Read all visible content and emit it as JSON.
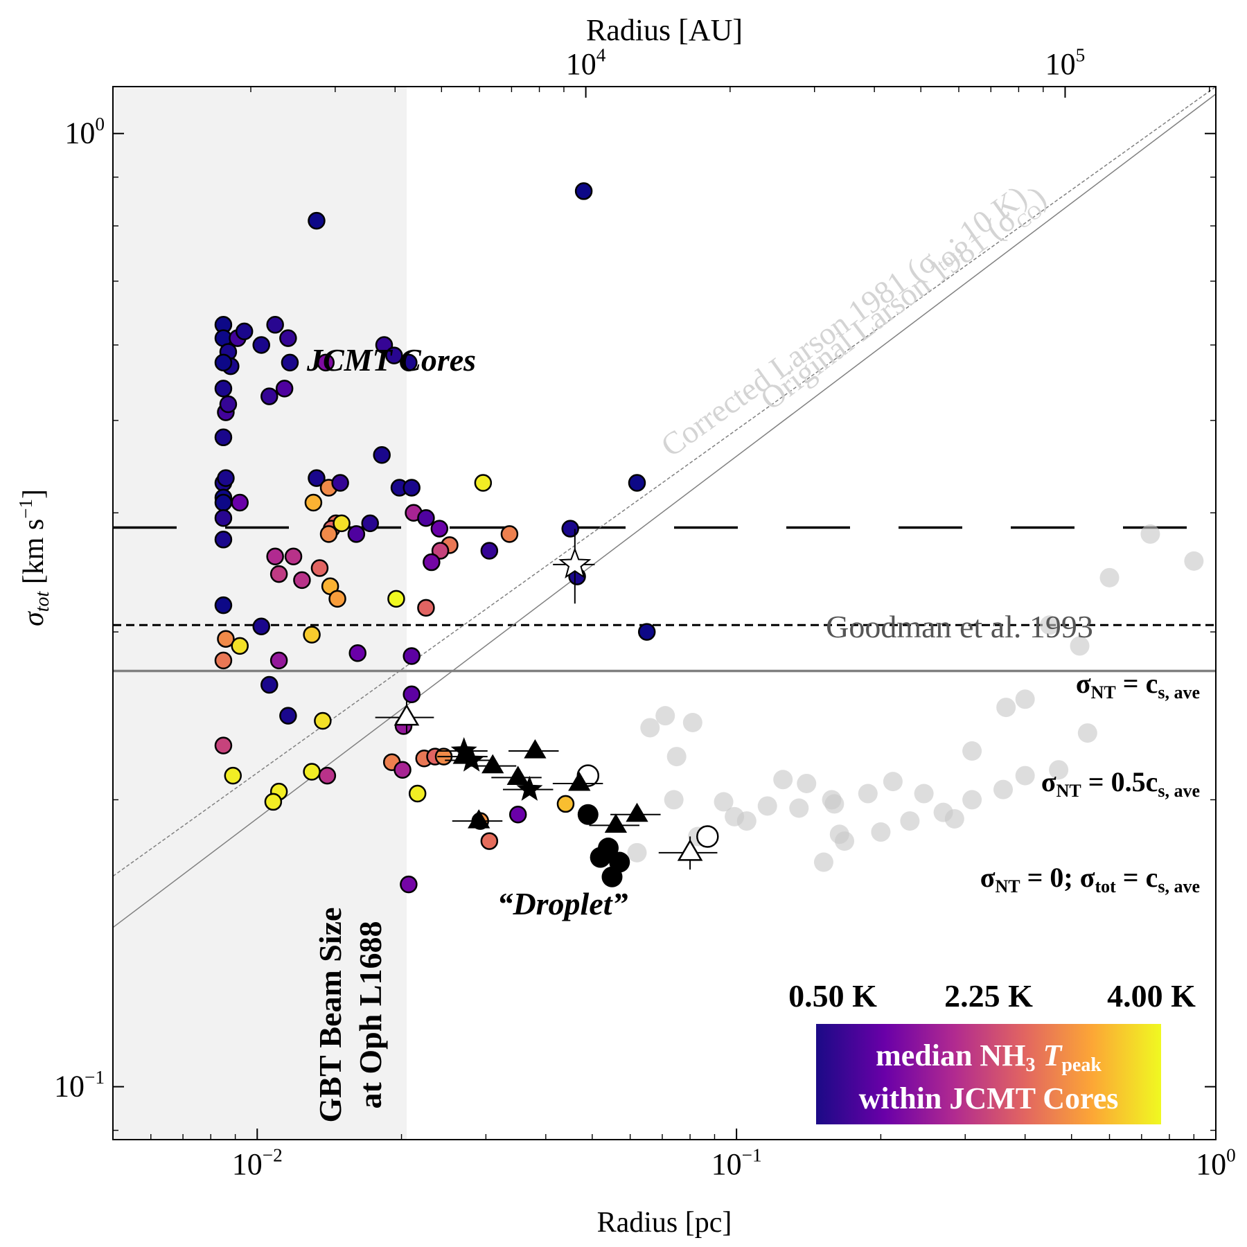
{
  "chart_data": {
    "type": "scatter",
    "title": "",
    "xlabel": "Radius [pc]",
    "ylabel_main": "σ",
    "ylabel_sub": "tot",
    "ylabel_units": " [km s",
    "ylabel_exp": "−1",
    "ylabel_close": "]",
    "top_xlabel": "Radius [AU]",
    "xscale": "log",
    "yscale": "log",
    "xlim": [
      0.005,
      1.0
    ],
    "ylim": [
      0.088,
      1.12
    ],
    "grid": false,
    "x_ticks": [
      {
        "value": 0.01,
        "base": "10",
        "exp": "−2"
      },
      {
        "value": 0.1,
        "base": "10",
        "exp": "−1"
      },
      {
        "value": 1.0,
        "base": "10",
        "exp": "0"
      }
    ],
    "y_ticks": [
      {
        "value": 0.1,
        "base": "10",
        "exp": "−1"
      },
      {
        "value": 1.0,
        "base": "10",
        "exp": "0"
      }
    ],
    "top_ticks": [
      {
        "value_au": 10000,
        "base": "10",
        "exp": "4"
      },
      {
        "value_au": 100000,
        "base": "10",
        "exp": "5"
      }
    ],
    "beam_region": {
      "x_max_pc": 0.0205,
      "label_line1": "GBT Beam Size",
      "label_line2": "at Oph L1688"
    },
    "colorbar": {
      "colors": [
        "#1b0a86",
        "#6a00a8",
        "#b12a90",
        "#e16462",
        "#fca636",
        "#f0f921"
      ],
      "tick_labels": [
        "0.50 K",
        "2.25 K",
        "4.00 K"
      ],
      "title_line1_a": "median NH",
      "title_line1_sub": "3",
      "title_line1_b": " T",
      "title_line1_sub2": "peak",
      "title_line2": "within JCMT Cores"
    },
    "reference_lines": {
      "cs_ave": 0.273,
      "nt_eq_cs": 0.386,
      "nt_half_cs": 0.305,
      "original_larson": {
        "a": 1.1,
        "b": 0.38
      },
      "corrected_larson": {
        "a": 1.12,
        "b": 0.36
      }
    },
    "labels": {
      "jcmt": "JCMT Cores",
      "droplet": "“Droplet”",
      "goodman": "Goodman et al. 1993",
      "original_larson_a": "Original Larson 1981 (σ",
      "original_larson_sub": "CO",
      "original_larson_b": ")",
      "corrected_larson_a": "Corrected Larson 1981 (σ",
      "corrected_larson_sub": "tot",
      "corrected_larson_b": "; 10 K)",
      "nt_eq_a": "σ",
      "nt_eq_sub1": "NT",
      "nt_eq_b": " = c",
      "nt_eq_sub2": "s, ave",
      "nt_half_a": "σ",
      "nt_half_sub1": "NT",
      "nt_half_b": " = 0.5c",
      "nt_half_sub2": "s, ave",
      "nt_zero_a": "σ",
      "nt_zero_sub1": "NT",
      "nt_zero_b": " = 0; σ",
      "nt_zero_sub2": "tot",
      "nt_zero_c": " = c",
      "nt_zero_sub3": "s, ave"
    },
    "series": [
      {
        "kind": "jcmt_cores",
        "points": [
          [
            0.0085,
            0.63,
            0.5
          ],
          [
            0.0085,
            0.61,
            0.5
          ],
          [
            0.0087,
            0.59,
            0.6
          ],
          [
            0.0088,
            0.57,
            0.6
          ],
          [
            0.0085,
            0.575,
            0.5
          ],
          [
            0.0085,
            0.54,
            0.6
          ],
          [
            0.0086,
            0.51,
            0.9
          ],
          [
            0.0087,
            0.52,
            0.8
          ],
          [
            0.0085,
            0.48,
            0.6
          ],
          [
            0.0091,
            0.61,
            0.9
          ],
          [
            0.0094,
            0.62,
            0.6
          ],
          [
            0.0102,
            0.6,
            0.6
          ],
          [
            0.0109,
            0.63,
            0.7
          ],
          [
            0.0116,
            0.61,
            0.8
          ],
          [
            0.0117,
            0.575,
            0.6
          ],
          [
            0.0106,
            0.53,
            0.8
          ],
          [
            0.0114,
            0.54,
            1.0
          ],
          [
            0.0133,
            0.81,
            0.5
          ],
          [
            0.0139,
            0.575,
            1.4
          ],
          [
            0.0184,
            0.6,
            0.8
          ],
          [
            0.0193,
            0.585,
            0.7
          ],
          [
            0.0207,
            0.575,
            0.6
          ],
          [
            0.0182,
            0.46,
            0.6
          ],
          [
            0.0085,
            0.43,
            0.6
          ],
          [
            0.0086,
            0.435,
            0.6
          ],
          [
            0.0085,
            0.415,
            0.5
          ],
          [
            0.0085,
            0.41,
            0.5
          ],
          [
            0.0085,
            0.395,
            0.7
          ],
          [
            0.0085,
            0.375,
            0.6
          ],
          [
            0.0092,
            0.41,
            1.2
          ],
          [
            0.0133,
            0.435,
            0.6
          ],
          [
            0.0141,
            0.425,
            3.0
          ],
          [
            0.0131,
            0.41,
            3.4
          ],
          [
            0.0149,
            0.43,
            0.8
          ],
          [
            0.0146,
            0.39,
            2.7
          ],
          [
            0.0143,
            0.385,
            2.6
          ],
          [
            0.0141,
            0.38,
            3.0
          ],
          [
            0.015,
            0.39,
            3.8
          ],
          [
            0.0161,
            0.38,
            1.0
          ],
          [
            0.0172,
            0.39,
            0.7
          ],
          [
            0.0198,
            0.425,
            0.6
          ],
          [
            0.021,
            0.425,
            0.6
          ],
          [
            0.0212,
            0.4,
            1.8
          ],
          [
            0.0225,
            0.395,
            1.0
          ],
          [
            0.024,
            0.385,
            1.2
          ],
          [
            0.0252,
            0.37,
            2.8
          ],
          [
            0.0296,
            0.43,
            3.9
          ],
          [
            0.0305,
            0.365,
            0.8
          ],
          [
            0.0336,
            0.38,
            2.9
          ],
          [
            0.0241,
            0.365,
            2.2
          ],
          [
            0.0231,
            0.355,
            1.3
          ],
          [
            0.0109,
            0.36,
            1.9
          ],
          [
            0.0111,
            0.345,
            2.1
          ],
          [
            0.0119,
            0.36,
            2.0
          ],
          [
            0.0124,
            0.34,
            2.0
          ],
          [
            0.0135,
            0.35,
            2.6
          ],
          [
            0.0142,
            0.335,
            3.4
          ],
          [
            0.0147,
            0.325,
            3.2
          ],
          [
            0.0195,
            0.325,
            4.0
          ],
          [
            0.0225,
            0.318,
            2.6
          ],
          [
            0.0085,
            0.32,
            0.5
          ],
          [
            0.0102,
            0.304,
            0.6
          ],
          [
            0.0086,
            0.295,
            3.0
          ],
          [
            0.0092,
            0.29,
            3.8
          ],
          [
            0.013,
            0.298,
            3.6
          ],
          [
            0.0085,
            0.28,
            2.8
          ],
          [
            0.0111,
            0.28,
            1.6
          ],
          [
            0.0162,
            0.285,
            1.2
          ],
          [
            0.0106,
            0.264,
            0.6
          ],
          [
            0.021,
            0.258,
            1.1
          ],
          [
            0.0116,
            0.245,
            0.6
          ],
          [
            0.0137,
            0.242,
            3.8
          ],
          [
            0.0202,
            0.239,
            1.6
          ],
          [
            0.0085,
            0.228,
            2.2
          ],
          [
            0.0089,
            0.212,
            3.9
          ],
          [
            0.013,
            0.214,
            3.9
          ],
          [
            0.014,
            0.212,
            2.0
          ],
          [
            0.0111,
            0.204,
            3.9
          ],
          [
            0.0108,
            0.199,
            3.9
          ],
          [
            0.0191,
            0.219,
            2.9
          ],
          [
            0.0223,
            0.221,
            2.8
          ],
          [
            0.0235,
            0.222,
            2.6
          ],
          [
            0.0245,
            0.222,
            3.0
          ],
          [
            0.0201,
            0.215,
            1.8
          ],
          [
            0.0216,
            0.203,
            3.9
          ],
          [
            0.0292,
            0.19,
            3.1
          ],
          [
            0.0305,
            0.181,
            2.7
          ],
          [
            0.035,
            0.193,
            1.2
          ],
          [
            0.044,
            0.198,
            3.5
          ],
          [
            0.048,
            0.87,
            0.5
          ],
          [
            0.045,
            0.385,
            0.6
          ],
          [
            0.062,
            0.43,
            0.5
          ],
          [
            0.0465,
            0.343,
            0.6
          ],
          [
            0.065,
            0.3,
            0.5
          ],
          [
            0.021,
            0.283,
            1.1
          ],
          [
            0.0207,
            0.163,
            1.3
          ]
        ]
      },
      {
        "kind": "goodman_1993",
        "points": [
          [
            0.066,
            0.238
          ],
          [
            0.071,
            0.245
          ],
          [
            0.081,
            0.241
          ],
          [
            0.075,
            0.222
          ],
          [
            0.094,
            0.199
          ],
          [
            0.099,
            0.192
          ],
          [
            0.116,
            0.197
          ],
          [
            0.125,
            0.21
          ],
          [
            0.14,
            0.208
          ],
          [
            0.164,
            0.184
          ],
          [
            0.152,
            0.172
          ],
          [
            0.168,
            0.181
          ],
          [
            0.158,
            0.2
          ],
          [
            0.188,
            0.203
          ],
          [
            0.212,
            0.209
          ],
          [
            0.246,
            0.203
          ],
          [
            0.285,
            0.191
          ],
          [
            0.31,
            0.225
          ],
          [
            0.365,
            0.25
          ],
          [
            0.4,
            0.255
          ],
          [
            0.45,
            0.305
          ],
          [
            0.52,
            0.29
          ],
          [
            0.6,
            0.342
          ],
          [
            0.9,
            0.356
          ],
          [
            0.73,
            0.38
          ],
          [
            0.54,
            0.235
          ],
          [
            0.47,
            0.215
          ],
          [
            0.4,
            0.212
          ],
          [
            0.36,
            0.205
          ],
          [
            0.31,
            0.2
          ],
          [
            0.27,
            0.194
          ],
          [
            0.23,
            0.19
          ],
          [
            0.2,
            0.185
          ],
          [
            0.16,
            0.198
          ],
          [
            0.135,
            0.196
          ],
          [
            0.105,
            0.19
          ],
          [
            0.083,
            0.183
          ],
          [
            0.074,
            0.2
          ],
          [
            0.062,
            0.176
          ]
        ]
      },
      {
        "kind": "droplet_filled_circles",
        "points": [
          [
            0.049,
            0.193
          ],
          [
            0.054,
            0.178
          ],
          [
            0.052,
            0.174
          ],
          [
            0.057,
            0.172
          ],
          [
            0.055,
            0.166
          ]
        ]
      },
      {
        "kind": "droplet_open_circles",
        "points": [
          [
            0.049,
            0.212
          ],
          [
            0.087,
            0.183
          ]
        ]
      },
      {
        "kind": "droplet_filled_triangles",
        "points": [
          [
            0.027,
            0.222
          ],
          [
            0.031,
            0.217
          ],
          [
            0.035,
            0.211
          ],
          [
            0.038,
            0.225
          ],
          [
            0.029,
            0.19
          ],
          [
            0.056,
            0.188
          ],
          [
            0.062,
            0.193
          ],
          [
            0.047,
            0.208
          ]
        ],
        "xerr_frac": 0.12
      },
      {
        "kind": "droplet_open_triangles",
        "points": [
          [
            0.0205,
            0.244
          ],
          [
            0.08,
            0.176
          ]
        ],
        "xerr_frac": 0.14
      },
      {
        "kind": "droplet_filled_stars",
        "points": [
          [
            0.027,
            0.225
          ],
          [
            0.028,
            0.22
          ],
          [
            0.037,
            0.205
          ]
        ],
        "xerr_frac": 0.12
      },
      {
        "kind": "droplet_open_star",
        "points": [
          [
            0.046,
            0.353
          ]
        ],
        "yerr_frac": 0.09
      }
    ]
  }
}
